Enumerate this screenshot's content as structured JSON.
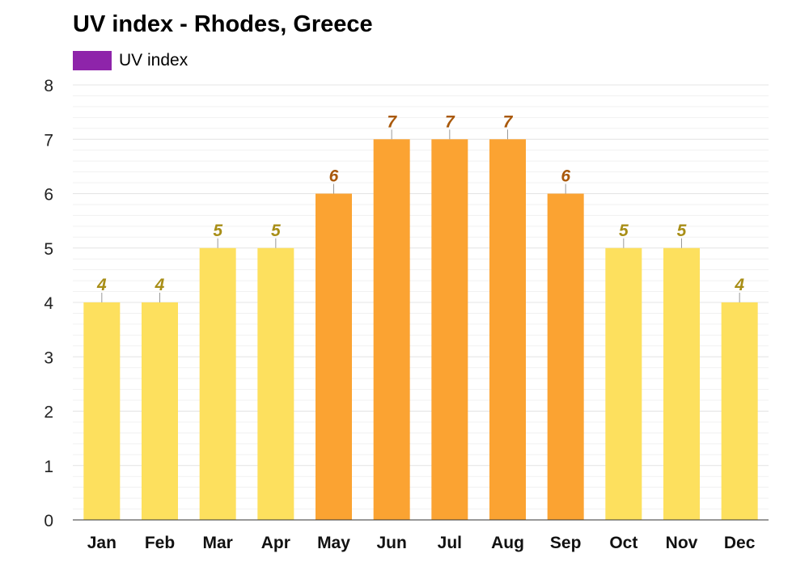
{
  "chart_data": {
    "type": "bar",
    "title": "UV index - Rhodes, Greece",
    "categories": [
      "Jan",
      "Feb",
      "Mar",
      "Apr",
      "May",
      "Jun",
      "Jul",
      "Aug",
      "Sep",
      "Oct",
      "Nov",
      "Dec"
    ],
    "series": [
      {
        "name": "UV index",
        "values": [
          4,
          4,
          5,
          5,
          6,
          7,
          7,
          7,
          6,
          5,
          5,
          4
        ]
      }
    ],
    "ylim": [
      0,
      8
    ],
    "yticks": [
      0,
      1,
      2,
      3,
      4,
      5,
      6,
      7,
      8
    ],
    "grid": true,
    "legend": "top-left",
    "colors": {
      "legend": "#8e24aa",
      "moderate_bar": "#fde05e",
      "high_bar": "#fba332",
      "moderate_label": "#a88e17",
      "high_label": "#a9590b",
      "grid": "#e4e4e4",
      "axis": "#333333"
    }
  }
}
